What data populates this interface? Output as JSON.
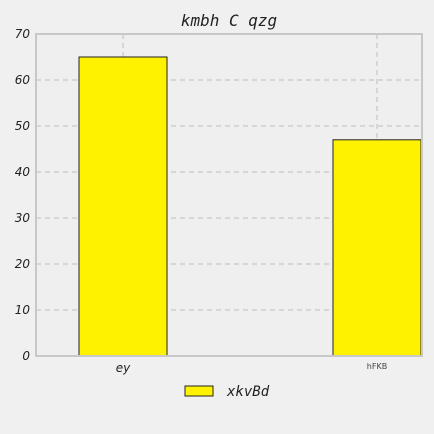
{
  "chart_data": {
    "type": "bar",
    "title": "kmbh C  qzg",
    "xlabel": "",
    "ylabel": "",
    "categories": [
      "ey",
      "hFKB"
    ],
    "series": [
      {
        "name": "xkvBd",
        "values": [
          65,
          47
        ],
        "color": "#fff200",
        "edge_color": "#222222"
      }
    ],
    "ylim": [
      0,
      70
    ],
    "yticks": [
      0,
      10,
      20,
      30,
      40,
      50,
      60,
      70
    ],
    "grid": true,
    "legend_position": "bottom-center",
    "background": "#efefef",
    "frame_color": "#c8c8c8"
  }
}
